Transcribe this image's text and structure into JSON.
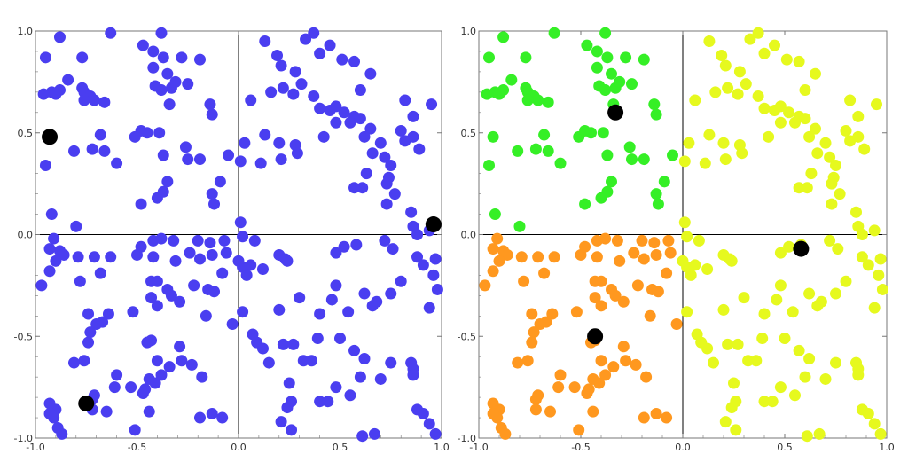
{
  "colors": {
    "frame": "#777777",
    "axis": "#000000",
    "left_points": "#4a3ef0",
    "q1": "#e6f91e",
    "q2": "#35ef26",
    "q3": "#ff981f",
    "q4": "#e6f91e",
    "centroid": "#000000"
  },
  "chart_data": [
    {
      "type": "scatter",
      "title": "",
      "xlim": [
        -1.0,
        1.0
      ],
      "ylim": [
        -1.0,
        1.0
      ],
      "grid": false,
      "legend": "none",
      "x_ticks": [
        -1.0,
        -0.5,
        0.0,
        0.5,
        1.0
      ],
      "y_ticks": [
        -1.0,
        -0.5,
        0.0,
        0.5,
        1.0
      ],
      "x_tick_labels": [
        "-1.0",
        "-0.5",
        "0.0",
        "0.5",
        "1.0"
      ],
      "y_tick_labels": [
        "-1.0",
        "-0.5",
        "0.0",
        "0.5",
        "1.0"
      ],
      "color_mode": "single",
      "points": [
        [
          -0.88,
          0.97
        ],
        [
          -0.95,
          0.87
        ],
        [
          -0.77,
          0.87
        ],
        [
          -0.63,
          0.99
        ],
        [
          -0.47,
          0.93
        ],
        [
          -0.38,
          0.99
        ],
        [
          -0.42,
          0.9
        ],
        [
          -0.37,
          0.87
        ],
        [
          -0.28,
          0.87
        ],
        [
          -0.19,
          0.86
        ],
        [
          -0.92,
          0.7
        ],
        [
          -0.96,
          0.69
        ],
        [
          -0.9,
          0.69
        ],
        [
          -0.84,
          0.76
        ],
        [
          -0.77,
          0.72
        ],
        [
          -0.76,
          0.7
        ],
        [
          -0.73,
          0.68
        ],
        [
          -0.71,
          0.66
        ],
        [
          -0.66,
          0.65
        ],
        [
          -0.76,
          0.66
        ],
        [
          -0.88,
          0.71
        ],
        [
          -0.42,
          0.82
        ],
        [
          -0.35,
          0.79
        ],
        [
          -0.41,
          0.73
        ],
        [
          -0.38,
          0.71
        ],
        [
          -0.33,
          0.72
        ],
        [
          -0.31,
          0.75
        ],
        [
          -0.25,
          0.74
        ],
        [
          -0.34,
          0.64
        ],
        [
          -0.14,
          0.64
        ],
        [
          -0.13,
          0.59
        ],
        [
          -0.93,
          0.48
        ],
        [
          -0.68,
          0.49
        ],
        [
          -0.81,
          0.41
        ],
        [
          -0.66,
          0.41
        ],
        [
          -0.95,
          0.34
        ],
        [
          -0.72,
          0.42
        ],
        [
          -0.6,
          0.35
        ],
        [
          -0.51,
          0.48
        ],
        [
          -0.48,
          0.51
        ],
        [
          -0.45,
          0.5
        ],
        [
          -0.39,
          0.5
        ],
        [
          -0.37,
          0.39
        ],
        [
          -0.26,
          0.43
        ],
        [
          -0.25,
          0.37
        ],
        [
          -0.19,
          0.37
        ],
        [
          -0.05,
          0.39
        ],
        [
          -0.35,
          0.26
        ],
        [
          -0.37,
          0.21
        ],
        [
          -0.48,
          0.15
        ],
        [
          -0.4,
          0.18
        ],
        [
          -0.13,
          0.2
        ],
        [
          -0.12,
          0.15
        ],
        [
          -0.09,
          0.26
        ],
        [
          -0.92,
          0.1
        ],
        [
          -0.8,
          0.04
        ],
        [
          0.19,
          0.88
        ],
        [
          0.13,
          0.95
        ],
        [
          0.21,
          0.83
        ],
        [
          0.33,
          0.96
        ],
        [
          0.37,
          0.99
        ],
        [
          0.45,
          0.93
        ],
        [
          0.51,
          0.86
        ],
        [
          0.57,
          0.85
        ],
        [
          0.4,
          0.89
        ],
        [
          0.28,
          0.8
        ],
        [
          0.22,
          0.72
        ],
        [
          0.06,
          0.66
        ],
        [
          0.16,
          0.7
        ],
        [
          0.27,
          0.69
        ],
        [
          0.31,
          0.74
        ],
        [
          0.37,
          0.68
        ],
        [
          0.4,
          0.62
        ],
        [
          0.45,
          0.61
        ],
        [
          0.48,
          0.63
        ],
        [
          0.52,
          0.6
        ],
        [
          0.57,
          0.58
        ],
        [
          0.6,
          0.57
        ],
        [
          0.6,
          0.71
        ],
        [
          0.65,
          0.79
        ],
        [
          0.82,
          0.66
        ],
        [
          0.95,
          0.64
        ],
        [
          0.86,
          0.58
        ],
        [
          0.13,
          0.49
        ],
        [
          0.03,
          0.45
        ],
        [
          0.2,
          0.45
        ],
        [
          0.42,
          0.48
        ],
        [
          0.48,
          0.55
        ],
        [
          0.55,
          0.55
        ],
        [
          0.65,
          0.52
        ],
        [
          0.62,
          0.48
        ],
        [
          0.7,
          0.45
        ],
        [
          0.66,
          0.4
        ],
        [
          0.72,
          0.38
        ],
        [
          0.8,
          0.51
        ],
        [
          0.82,
          0.46
        ],
        [
          0.89,
          0.42
        ],
        [
          0.86,
          0.48
        ],
        [
          0.01,
          0.36
        ],
        [
          0.11,
          0.35
        ],
        [
          0.21,
          0.37
        ],
        [
          0.28,
          0.44
        ],
        [
          0.29,
          0.4
        ],
        [
          0.75,
          0.34
        ],
        [
          0.74,
          0.28
        ],
        [
          0.73,
          0.25
        ],
        [
          0.63,
          0.3
        ],
        [
          0.57,
          0.23
        ],
        [
          0.61,
          0.23
        ],
        [
          0.77,
          0.2
        ],
        [
          0.85,
          0.11
        ],
        [
          0.73,
          0.15
        ],
        [
          0.86,
          0.04
        ],
        [
          0.94,
          0.02
        ],
        [
          0.88,
          0.0
        ],
        [
          0.02,
          -0.01
        ],
        [
          0.01,
          0.06
        ],
        [
          -0.91,
          -0.02
        ],
        [
          -0.93,
          -0.07
        ],
        [
          -0.88,
          -0.08
        ],
        [
          -0.79,
          -0.11
        ],
        [
          -0.86,
          -0.1
        ],
        [
          -0.71,
          -0.11
        ],
        [
          -0.63,
          -0.11
        ],
        [
          -0.5,
          -0.1
        ],
        [
          -0.48,
          -0.06
        ],
        [
          -0.42,
          -0.03
        ],
        [
          -0.38,
          -0.02
        ],
        [
          -0.32,
          -0.03
        ],
        [
          -0.31,
          -0.13
        ],
        [
          -0.24,
          -0.09
        ],
        [
          -0.19,
          -0.12
        ],
        [
          -0.2,
          -0.03
        ],
        [
          -0.14,
          -0.04
        ],
        [
          -0.13,
          -0.1
        ],
        [
          -0.06,
          -0.09
        ],
        [
          -0.07,
          -0.03
        ],
        [
          -0.93,
          -0.18
        ],
        [
          -0.9,
          -0.13
        ],
        [
          -0.97,
          -0.25
        ],
        [
          -0.68,
          -0.19
        ],
        [
          -0.78,
          -0.23
        ],
        [
          -0.42,
          -0.11
        ],
        [
          -0.4,
          -0.23
        ],
        [
          -0.43,
          -0.23
        ],
        [
          -0.35,
          -0.27
        ],
        [
          -0.33,
          -0.3
        ],
        [
          -0.29,
          -0.33
        ],
        [
          -0.22,
          -0.25
        ],
        [
          -0.15,
          -0.27
        ],
        [
          -0.12,
          -0.28
        ],
        [
          -0.08,
          -0.19
        ],
        [
          -0.43,
          -0.31
        ],
        [
          -0.74,
          -0.39
        ],
        [
          -0.64,
          -0.39
        ],
        [
          -0.67,
          -0.43
        ],
        [
          -0.7,
          -0.44
        ],
        [
          -0.73,
          -0.48
        ],
        [
          -0.74,
          -0.53
        ],
        [
          -0.52,
          -0.38
        ],
        [
          -0.4,
          -0.35
        ],
        [
          -0.43,
          -0.52
        ],
        [
          -0.45,
          -0.53
        ],
        [
          -0.29,
          -0.55
        ],
        [
          -0.16,
          -0.4
        ],
        [
          -0.03,
          -0.44
        ],
        [
          -0.76,
          -0.62
        ],
        [
          -0.81,
          -0.63
        ],
        [
          -0.6,
          -0.69
        ],
        [
          -0.61,
          -0.75
        ],
        [
          -0.4,
          -0.62
        ],
        [
          -0.38,
          -0.69
        ],
        [
          -0.34,
          -0.65
        ],
        [
          -0.28,
          -0.62
        ],
        [
          -0.23,
          -0.64
        ],
        [
          -0.18,
          -0.7
        ],
        [
          -0.41,
          -0.73
        ],
        [
          -0.44,
          -0.71
        ],
        [
          -0.46,
          -0.76
        ],
        [
          -0.47,
          -0.78
        ],
        [
          -0.53,
          -0.75
        ],
        [
          -0.71,
          -0.79
        ],
        [
          -0.72,
          -0.81
        ],
        [
          -0.72,
          -0.86
        ],
        [
          -0.9,
          -0.86
        ],
        [
          -0.93,
          -0.83
        ],
        [
          -0.91,
          -0.9
        ],
        [
          -0.93,
          -0.88
        ],
        [
          -0.89,
          -0.95
        ],
        [
          -0.87,
          -0.98
        ],
        [
          -0.51,
          -0.96
        ],
        [
          -0.13,
          -0.88
        ],
        [
          -0.19,
          -0.9
        ],
        [
          -0.08,
          -0.9
        ],
        [
          -0.65,
          -0.87
        ],
        [
          -0.44,
          -0.87
        ],
        [
          0.08,
          -0.03
        ],
        [
          0.2,
          -0.1
        ],
        [
          0.24,
          -0.13
        ],
        [
          0.06,
          -0.15
        ],
        [
          0.12,
          -0.17
        ],
        [
          0.02,
          -0.16
        ],
        [
          0.04,
          -0.2
        ],
        [
          0.0,
          -0.13
        ],
        [
          0.23,
          -0.12
        ],
        [
          0.48,
          -0.09
        ],
        [
          0.52,
          -0.06
        ],
        [
          0.58,
          -0.05
        ],
        [
          0.72,
          -0.03
        ],
        [
          0.76,
          -0.07
        ],
        [
          0.88,
          -0.11
        ],
        [
          0.91,
          -0.15
        ],
        [
          0.97,
          -0.12
        ],
        [
          0.96,
          -0.2
        ],
        [
          0.98,
          -0.27
        ],
        [
          0.94,
          -0.36
        ],
        [
          0.8,
          -0.23
        ],
        [
          0.75,
          -0.29
        ],
        [
          0.68,
          -0.33
        ],
        [
          0.66,
          -0.35
        ],
        [
          0.62,
          -0.29
        ],
        [
          0.48,
          -0.25
        ],
        [
          0.46,
          -0.32
        ],
        [
          0.4,
          -0.39
        ],
        [
          0.3,
          -0.31
        ],
        [
          0.54,
          -0.38
        ],
        [
          0.2,
          -0.37
        ],
        [
          0.02,
          -0.38
        ],
        [
          0.07,
          -0.49
        ],
        [
          0.09,
          -0.53
        ],
        [
          0.12,
          -0.56
        ],
        [
          0.15,
          -0.63
        ],
        [
          0.22,
          -0.54
        ],
        [
          0.27,
          -0.54
        ],
        [
          0.39,
          -0.51
        ],
        [
          0.5,
          -0.51
        ],
        [
          0.57,
          -0.57
        ],
        [
          0.32,
          -0.62
        ],
        [
          0.36,
          -0.62
        ],
        [
          0.25,
          -0.73
        ],
        [
          0.26,
          -0.82
        ],
        [
          0.24,
          -0.85
        ],
        [
          0.21,
          -0.92
        ],
        [
          0.26,
          -0.96
        ],
        [
          0.4,
          -0.82
        ],
        [
          0.44,
          -0.82
        ],
        [
          0.48,
          -0.75
        ],
        [
          0.55,
          -0.79
        ],
        [
          0.6,
          -0.7
        ],
        [
          0.62,
          -0.61
        ],
        [
          0.7,
          -0.71
        ],
        [
          0.75,
          -0.63
        ],
        [
          0.85,
          -0.63
        ],
        [
          0.86,
          -0.66
        ],
        [
          0.86,
          -0.69
        ],
        [
          0.88,
          -0.86
        ],
        [
          0.91,
          -0.88
        ],
        [
          0.94,
          -0.93
        ],
        [
          0.97,
          -0.98
        ],
        [
          0.67,
          -0.98
        ],
        [
          0.61,
          -0.99
        ]
      ],
      "centroids": [
        [
          -0.93,
          0.48
        ],
        [
          0.96,
          0.05
        ],
        [
          -0.75,
          -0.83
        ]
      ]
    },
    {
      "type": "scatter",
      "title": "",
      "xlim": [
        -1.0,
        1.0
      ],
      "ylim": [
        -1.0,
        1.0
      ],
      "grid": false,
      "legend": "none",
      "x_ticks": [
        -1.0,
        -0.5,
        0.0,
        0.5,
        1.0
      ],
      "y_ticks": [
        -1.0,
        -0.5,
        0.0,
        0.5,
        1.0
      ],
      "x_tick_labels": [
        "-1.0",
        "-0.5",
        "0.0",
        "0.5",
        "1.0"
      ],
      "y_tick_labels": [
        "-1.0",
        "-0.5",
        "0.0",
        "0.5",
        "1.0"
      ],
      "color_mode": "quadrant",
      "points": "same as left panel",
      "centroids": [
        [
          -0.33,
          0.6
        ],
        [
          0.58,
          -0.07
        ],
        [
          -0.43,
          -0.5
        ]
      ]
    }
  ]
}
